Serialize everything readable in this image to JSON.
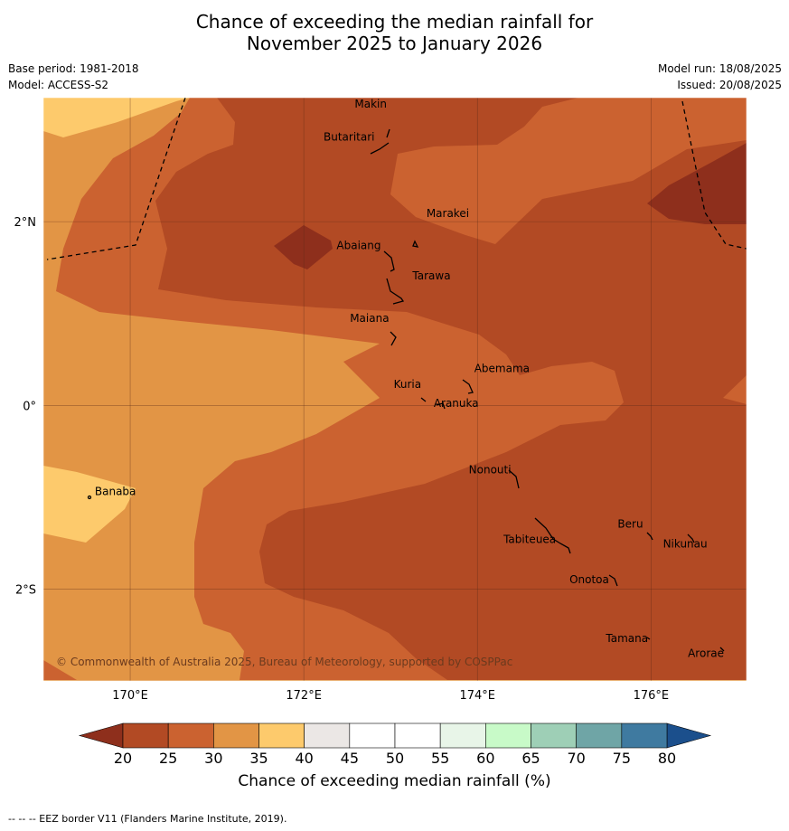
{
  "title": {
    "line1": "Chance of exceeding the median rainfall for",
    "line2": "November 2025 to January 2026"
  },
  "info_left": {
    "base_period": "Base period: 1981-2018",
    "model": "Model: ACCESS-S2"
  },
  "info_right": {
    "model_run": "Model run: 18/08/2025",
    "issued": "Issued: 20/08/2025"
  },
  "map": {
    "lon_range": [
      169,
      177.1
    ],
    "lat_range": [
      -3,
      3.35
    ],
    "lon_ticks": [
      {
        "value": 170,
        "label": "170°E"
      },
      {
        "value": 172,
        "label": "172°E"
      },
      {
        "value": 174,
        "label": "174°E"
      },
      {
        "value": 176,
        "label": "176°E"
      }
    ],
    "lat_ticks": [
      {
        "value": 2,
        "label": "2°N"
      },
      {
        "value": 0,
        "label": "0°"
      },
      {
        "value": -2,
        "label": "2°S"
      }
    ],
    "places": [
      {
        "name": "Makin",
        "lon": 172.95,
        "lat": 3.22
      },
      {
        "name": "Butaritari",
        "lon": 172.8,
        "lat": 2.93
      },
      {
        "name": "Marakei",
        "lon": 173.35,
        "lat": 2.0
      },
      {
        "name": "Abaiang",
        "lon": 172.95,
        "lat": 1.78
      },
      {
        "name": "Tarawa",
        "lon": 173.2,
        "lat": 1.42
      },
      {
        "name": "Maiana",
        "lon": 173.0,
        "lat": 0.95
      },
      {
        "name": "Abemama",
        "lon": 173.88,
        "lat": 0.4
      },
      {
        "name": "Kuria",
        "lon": 173.4,
        "lat": 0.23
      },
      {
        "name": "Aranuka",
        "lon": 173.6,
        "lat": 0.16
      },
      {
        "name": "Banaba",
        "lon": 169.53,
        "lat": -0.86
      },
      {
        "name": "Nonouti",
        "lon": 174.4,
        "lat": -0.68
      },
      {
        "name": "Beru",
        "lon": 175.98,
        "lat": -1.33
      },
      {
        "name": "Nikunau",
        "lon": 176.45,
        "lat": -1.36
      },
      {
        "name": "Tabiteuea",
        "lon": 174.8,
        "lat": -1.4
      },
      {
        "name": "Onotoa",
        "lon": 175.56,
        "lat": -1.86
      },
      {
        "name": "Tamana",
        "lon": 175.98,
        "lat": -2.5
      },
      {
        "name": "Arorae",
        "lon": 176.82,
        "lat": -2.64
      }
    ],
    "copyright": "© Commonwealth of Australia 2025, Bureau of Meteorology, supported by COSPPac"
  },
  "colorbar": {
    "ticks": [
      20,
      25,
      30,
      35,
      40,
      45,
      50,
      55,
      60,
      65,
      70,
      75,
      80
    ],
    "colors": [
      "#b24a24",
      "#cb6230",
      "#e29545",
      "#fdca6c",
      "#ebe7e5",
      "#ffffff",
      "#ffffff",
      "#e8f5e8",
      "#c8fac8",
      "#9ecfb6",
      "#6fa5a6",
      "#3f7aa0"
    ],
    "under_color": "#8e2f1c",
    "over_color": "#1b4f8c",
    "label": "Chance of exceeding median rainfall (%)"
  },
  "footnote": "--  --  -- EEZ border V11 (Flanders Marine Institute, 2019)."
}
